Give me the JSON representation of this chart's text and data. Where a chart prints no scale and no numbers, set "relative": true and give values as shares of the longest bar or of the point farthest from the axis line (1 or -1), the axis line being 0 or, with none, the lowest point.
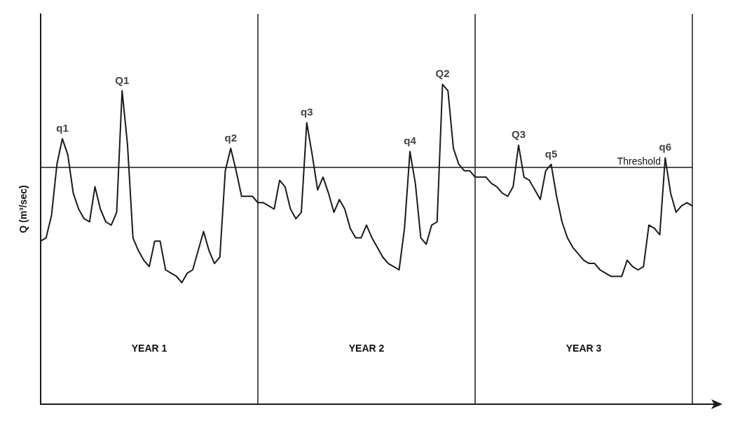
{
  "chart_data": {
    "type": "line",
    "relative": true,
    "ylabel": "Q (m³/sec)",
    "color": "#1a1a1a",
    "grid": false,
    "categories": [
      null,
      null,
      null,
      null,
      null,
      null,
      null,
      null,
      null,
      null,
      null,
      null,
      null,
      null,
      null,
      null,
      null,
      null,
      null,
      null,
      null,
      null,
      null,
      null,
      null,
      null,
      null,
      null,
      null,
      null,
      null,
      null,
      null,
      null,
      null,
      null,
      null,
      null,
      null,
      null,
      null,
      null,
      null,
      null,
      null,
      null,
      null,
      null,
      null,
      null,
      null,
      null,
      null,
      null,
      null,
      null,
      null,
      null,
      null,
      null,
      null,
      null,
      null,
      null,
      null,
      null,
      null,
      null,
      null,
      null,
      null,
      null,
      null,
      null,
      null,
      null,
      null,
      null,
      null,
      null,
      null,
      null,
      null,
      null,
      null,
      null,
      null,
      null,
      null,
      null,
      null,
      null,
      null,
      null,
      null,
      null,
      null,
      null,
      null,
      null,
      null,
      null,
      null,
      null,
      null,
      null,
      null,
      null,
      null,
      null,
      null,
      null,
      null,
      null,
      null,
      null,
      null,
      null,
      null,
      null,
      null
    ],
    "values": [
      0.51,
      0.52,
      0.59,
      0.75,
      0.83,
      0.78,
      0.66,
      0.61,
      0.58,
      0.57,
      0.68,
      0.61,
      0.57,
      0.56,
      0.6,
      0.98,
      0.81,
      0.52,
      0.48,
      0.45,
      0.43,
      0.51,
      0.51,
      0.42,
      0.41,
      0.4,
      0.38,
      0.41,
      0.42,
      0.48,
      0.54,
      0.48,
      0.44,
      0.46,
      0.73,
      0.8,
      0.73,
      0.65,
      0.65,
      0.65,
      0.63,
      0.63,
      0.62,
      0.61,
      0.7,
      0.68,
      0.61,
      0.58,
      0.6,
      0.88,
      0.78,
      0.67,
      0.71,
      0.66,
      0.6,
      0.64,
      0.61,
      0.55,
      0.52,
      0.52,
      0.56,
      0.52,
      0.49,
      0.46,
      0.44,
      0.43,
      0.42,
      0.55,
      0.79,
      0.69,
      0.52,
      0.5,
      0.56,
      0.57,
      1,
      0.98,
      0.8,
      0.75,
      0.73,
      0.73,
      0.71,
      0.71,
      0.71,
      0.69,
      0.68,
      0.66,
      0.65,
      0.68,
      0.81,
      0.71,
      0.7,
      0.67,
      0.64,
      0.73,
      0.75,
      0.65,
      0.57,
      0.52,
      0.49,
      0.47,
      0.45,
      0.44,
      0.44,
      0.42,
      0.41,
      0.4,
      0.4,
      0.4,
      0.45,
      0.43,
      0.42,
      0.43,
      0.56,
      0.55,
      0.53,
      0.77,
      0.66,
      0.6,
      0.62,
      0.63,
      0.62
    ],
    "ref_lines": [
      {
        "axis": "y",
        "value": 0.74,
        "label": "Threshold"
      }
    ],
    "annotations": [
      {
        "text": "q1",
        "y": 0.83
      },
      {
        "text": "Q1",
        "y": 0.98
      },
      {
        "text": "q2",
        "y": 0.8
      },
      {
        "text": "q3",
        "y": 0.88
      },
      {
        "text": "q4",
        "y": 0.79
      },
      {
        "text": "Q2",
        "y": 1
      },
      {
        "text": "Q3",
        "y": 0.81
      },
      {
        "text": "q5",
        "y": 0.75
      },
      {
        "text": "q6",
        "y": 0.77
      },
      {
        "text": "YEAR 1"
      },
      {
        "text": "YEAR 2"
      },
      {
        "text": "YEAR 3"
      }
    ]
  }
}
